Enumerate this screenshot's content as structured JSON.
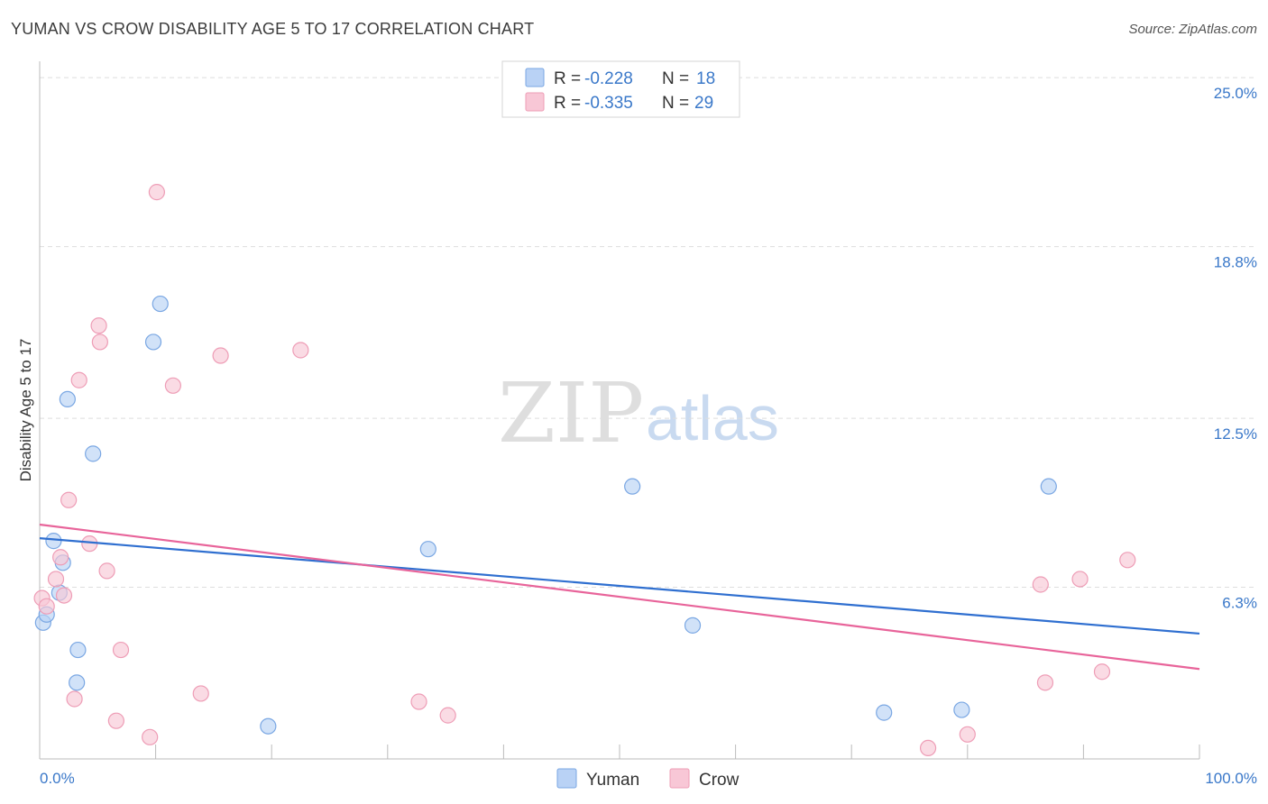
{
  "title": "YUMAN VS CROW DISABILITY AGE 5 TO 17 CORRELATION CHART",
  "source": "Source: ZipAtlas.com",
  "watermark": {
    "zip": "ZIP",
    "atlas": "atlas"
  },
  "colors": {
    "yuman_fill": "#b9d2f5",
    "yuman_stroke": "#7aa7e3",
    "yuman_line": "#2f6fd0",
    "crow_fill": "#f8c7d6",
    "crow_stroke": "#ee9db6",
    "crow_line": "#e8649a",
    "grid": "#dddddd",
    "axis_text": "#3a78c9"
  },
  "legend": {
    "rows": [
      {
        "r_label": "R =",
        "r_value": "-0.228",
        "n_label": "N =",
        "n_value": "18"
      },
      {
        "r_label": "R =",
        "r_value": "-0.335",
        "n_label": "N =",
        "n_value": "29"
      }
    ]
  },
  "bottom_legend": [
    "Yuman",
    "Crow"
  ],
  "chart_data": {
    "type": "scatter",
    "title": "YUMAN VS CROW DISABILITY AGE 5 TO 17 CORRELATION CHART",
    "xlabel": "",
    "ylabel": "Disability Age 5 to 17",
    "xlim": [
      0,
      100
    ],
    "ylim": [
      0,
      25.6
    ],
    "x_tick_labels": [
      "0.0%",
      "100.0%"
    ],
    "y_ticks": [
      6.3,
      12.5,
      18.8,
      25.0
    ],
    "y_tick_labels": [
      "6.3%",
      "12.5%",
      "18.8%",
      "25.0%"
    ],
    "series": [
      {
        "name": "Yuman",
        "r": -0.228,
        "n": 18,
        "trend": {
          "x": [
            0,
            100
          ],
          "y": [
            8.1,
            4.6
          ]
        },
        "points": [
          {
            "x": 0.3,
            "y": 5.0
          },
          {
            "x": 0.6,
            "y": 5.3
          },
          {
            "x": 1.2,
            "y": 8.0
          },
          {
            "x": 1.7,
            "y": 6.1
          },
          {
            "x": 2.0,
            "y": 7.2
          },
          {
            "x": 2.4,
            "y": 13.2
          },
          {
            "x": 3.2,
            "y": 2.8
          },
          {
            "x": 3.3,
            "y": 4.0
          },
          {
            "x": 4.6,
            "y": 11.2
          },
          {
            "x": 9.8,
            "y": 15.3
          },
          {
            "x": 10.4,
            "y": 16.7
          },
          {
            "x": 19.7,
            "y": 1.2
          },
          {
            "x": 33.5,
            "y": 7.7
          },
          {
            "x": 51.1,
            "y": 10.0
          },
          {
            "x": 56.3,
            "y": 4.9
          },
          {
            "x": 72.8,
            "y": 1.7
          },
          {
            "x": 79.5,
            "y": 1.8
          },
          {
            "x": 87.0,
            "y": 10.0
          }
        ]
      },
      {
        "name": "Crow",
        "r": -0.335,
        "n": 29,
        "trend": {
          "x": [
            0,
            100
          ],
          "y": [
            8.6,
            3.3
          ]
        },
        "points": [
          {
            "x": 0.2,
            "y": 5.9
          },
          {
            "x": 0.6,
            "y": 5.6
          },
          {
            "x": 1.4,
            "y": 6.6
          },
          {
            "x": 1.8,
            "y": 7.4
          },
          {
            "x": 2.1,
            "y": 6.0
          },
          {
            "x": 2.5,
            "y": 9.5
          },
          {
            "x": 3.0,
            "y": 2.2
          },
          {
            "x": 3.4,
            "y": 13.9
          },
          {
            "x": 4.3,
            "y": 7.9
          },
          {
            "x": 5.1,
            "y": 15.9
          },
          {
            "x": 5.2,
            "y": 15.3
          },
          {
            "x": 5.8,
            "y": 6.9
          },
          {
            "x": 6.6,
            "y": 1.4
          },
          {
            "x": 7.0,
            "y": 4.0
          },
          {
            "x": 9.5,
            "y": 0.8
          },
          {
            "x": 10.1,
            "y": 20.8
          },
          {
            "x": 11.5,
            "y": 13.7
          },
          {
            "x": 13.9,
            "y": 2.4
          },
          {
            "x": 15.6,
            "y": 14.8
          },
          {
            "x": 22.5,
            "y": 15.0
          },
          {
            "x": 32.7,
            "y": 2.1
          },
          {
            "x": 35.2,
            "y": 1.6
          },
          {
            "x": 76.6,
            "y": 0.4
          },
          {
            "x": 80.0,
            "y": 0.9
          },
          {
            "x": 86.3,
            "y": 6.4
          },
          {
            "x": 86.7,
            "y": 2.8
          },
          {
            "x": 89.7,
            "y": 6.6
          },
          {
            "x": 91.6,
            "y": 3.2
          },
          {
            "x": 93.8,
            "y": 7.3
          }
        ]
      }
    ]
  }
}
